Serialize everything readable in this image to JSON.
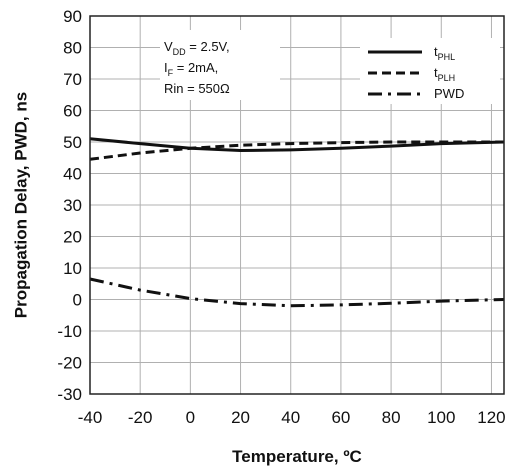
{
  "chart_data": {
    "type": "line",
    "xlabel": "Temperature, ºC",
    "ylabel": "Propagation Delay, PWD, ns",
    "xlim": [
      -40,
      125
    ],
    "ylim": [
      -30,
      90
    ],
    "xticks": [
      -40,
      -20,
      0,
      20,
      40,
      60,
      80,
      100,
      120
    ],
    "yticks": [
      -30,
      -20,
      -10,
      0,
      10,
      20,
      30,
      40,
      50,
      60,
      70,
      80,
      90
    ],
    "grid": true,
    "legend_position": "top-right",
    "conditions": [
      {
        "main": "V",
        "sub": "DD",
        "rest": " = 2.5V,"
      },
      {
        "main": "I",
        "sub": "F",
        "rest": " = 2mA,"
      },
      {
        "main": "Rin = 550Ω",
        "sub": "",
        "rest": ""
      }
    ],
    "series": [
      {
        "name_main": "t",
        "name_sub": "PHL",
        "style": "solid",
        "x": [
          -40,
          -20,
          0,
          20,
          40,
          60,
          80,
          100,
          125
        ],
        "y": [
          51,
          49.5,
          48,
          47.3,
          47.5,
          48,
          48.7,
          49.5,
          50
        ]
      },
      {
        "name_main": "t",
        "name_sub": "PLH",
        "style": "dash",
        "x": [
          -40,
          -20,
          0,
          20,
          40,
          60,
          80,
          100,
          125
        ],
        "y": [
          44.5,
          46.5,
          48,
          49,
          49.5,
          49.8,
          50,
          50,
          50
        ]
      },
      {
        "name_main": "PWD",
        "name_sub": "",
        "style": "dashdot",
        "x": [
          -40,
          -20,
          0,
          20,
          40,
          60,
          80,
          100,
          125
        ],
        "y": [
          6.5,
          3,
          0.3,
          -1.3,
          -2,
          -1.7,
          -1.2,
          -0.5,
          0
        ]
      }
    ]
  }
}
